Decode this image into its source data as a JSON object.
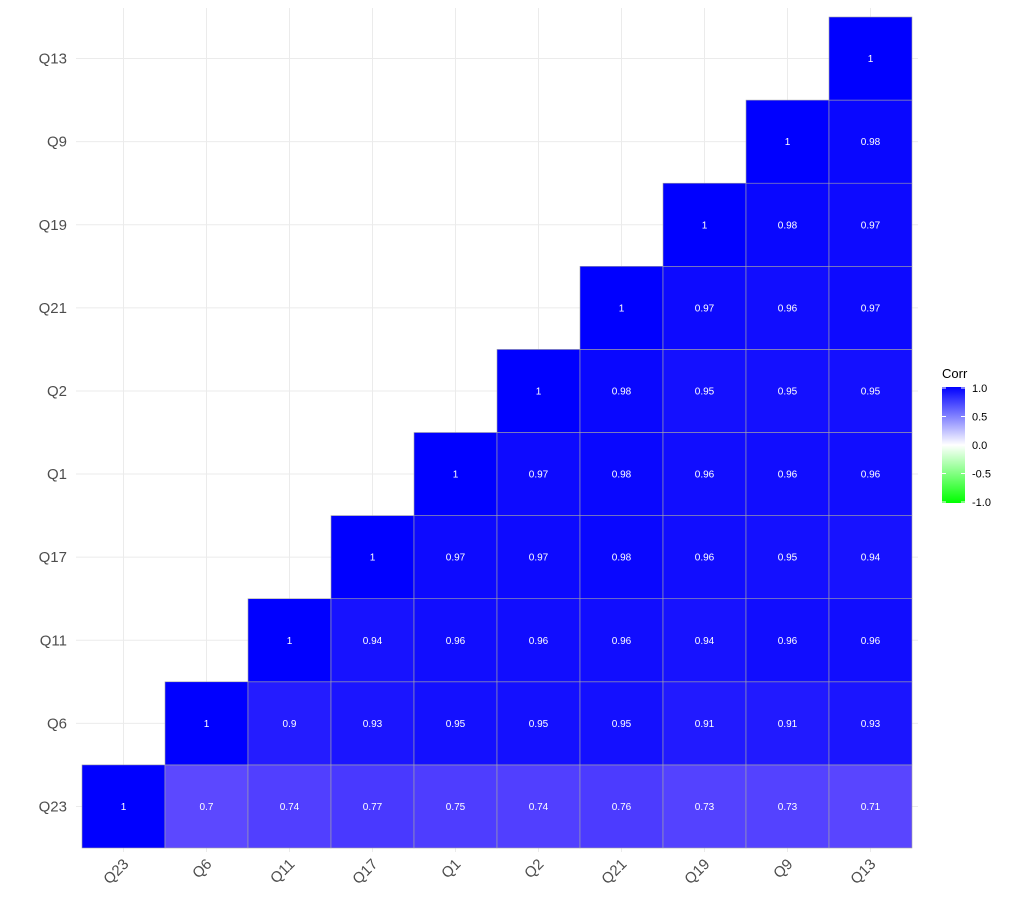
{
  "chart_data": {
    "type": "heatmap",
    "title": "",
    "xlabel": "",
    "ylabel": "",
    "variables": [
      "Q23",
      "Q6",
      "Q11",
      "Q17",
      "Q1",
      "Q2",
      "Q21",
      "Q19",
      "Q9",
      "Q13"
    ],
    "lower_triangle_only": true,
    "cells": [
      [
        "Q23",
        "Q23",
        1
      ],
      [
        "Q6",
        "Q23",
        0.7
      ],
      [
        "Q11",
        "Q23",
        0.74
      ],
      [
        "Q17",
        "Q23",
        0.77
      ],
      [
        "Q1",
        "Q23",
        0.75
      ],
      [
        "Q2",
        "Q23",
        0.74
      ],
      [
        "Q21",
        "Q23",
        0.76
      ],
      [
        "Q19",
        "Q23",
        0.73
      ],
      [
        "Q9",
        "Q23",
        0.73
      ],
      [
        "Q13",
        "Q23",
        0.71
      ],
      [
        "Q6",
        "Q6",
        1
      ],
      [
        "Q11",
        "Q6",
        0.9
      ],
      [
        "Q17",
        "Q6",
        0.93
      ],
      [
        "Q1",
        "Q6",
        0.95
      ],
      [
        "Q2",
        "Q6",
        0.95
      ],
      [
        "Q21",
        "Q6",
        0.95
      ],
      [
        "Q19",
        "Q6",
        0.91
      ],
      [
        "Q9",
        "Q6",
        0.91
      ],
      [
        "Q13",
        "Q6",
        0.93
      ],
      [
        "Q11",
        "Q11",
        1
      ],
      [
        "Q17",
        "Q11",
        0.94
      ],
      [
        "Q1",
        "Q11",
        0.96
      ],
      [
        "Q2",
        "Q11",
        0.96
      ],
      [
        "Q21",
        "Q11",
        0.96
      ],
      [
        "Q19",
        "Q11",
        0.94
      ],
      [
        "Q9",
        "Q11",
        0.96
      ],
      [
        "Q13",
        "Q11",
        0.96
      ],
      [
        "Q17",
        "Q17",
        1
      ],
      [
        "Q1",
        "Q17",
        0.97
      ],
      [
        "Q2",
        "Q17",
        0.97
      ],
      [
        "Q21",
        "Q17",
        0.98
      ],
      [
        "Q19",
        "Q17",
        0.96
      ],
      [
        "Q9",
        "Q17",
        0.95
      ],
      [
        "Q13",
        "Q17",
        0.94
      ],
      [
        "Q1",
        "Q1",
        1
      ],
      [
        "Q2",
        "Q1",
        0.97
      ],
      [
        "Q21",
        "Q1",
        0.98
      ],
      [
        "Q19",
        "Q1",
        0.96
      ],
      [
        "Q9",
        "Q1",
        0.96
      ],
      [
        "Q13",
        "Q1",
        0.96
      ],
      [
        "Q2",
        "Q2",
        1
      ],
      [
        "Q21",
        "Q2",
        0.98
      ],
      [
        "Q19",
        "Q2",
        0.95
      ],
      [
        "Q9",
        "Q2",
        0.95
      ],
      [
        "Q13",
        "Q2",
        0.95
      ],
      [
        "Q21",
        "Q21",
        1
      ],
      [
        "Q19",
        "Q21",
        0.97
      ],
      [
        "Q9",
        "Q21",
        0.96
      ],
      [
        "Q13",
        "Q21",
        0.97
      ],
      [
        "Q19",
        "Q19",
        1
      ],
      [
        "Q9",
        "Q19",
        0.98
      ],
      [
        "Q13",
        "Q19",
        0.97
      ],
      [
        "Q9",
        "Q9",
        1
      ],
      [
        "Q13",
        "Q9",
        0.98
      ],
      [
        "Q13",
        "Q13",
        1
      ]
    ],
    "color_scale": {
      "low": "#00ff00",
      "mid": "#ffffff",
      "high": "#0000ff",
      "limits": [
        -1,
        1
      ]
    },
    "legend": {
      "title": "Corr",
      "breaks": [
        "1.0",
        "0.5",
        "0.0",
        "-0.5",
        "-1.0"
      ],
      "position": "right"
    },
    "grid": true,
    "x_tick_rotation_deg": 45
  }
}
